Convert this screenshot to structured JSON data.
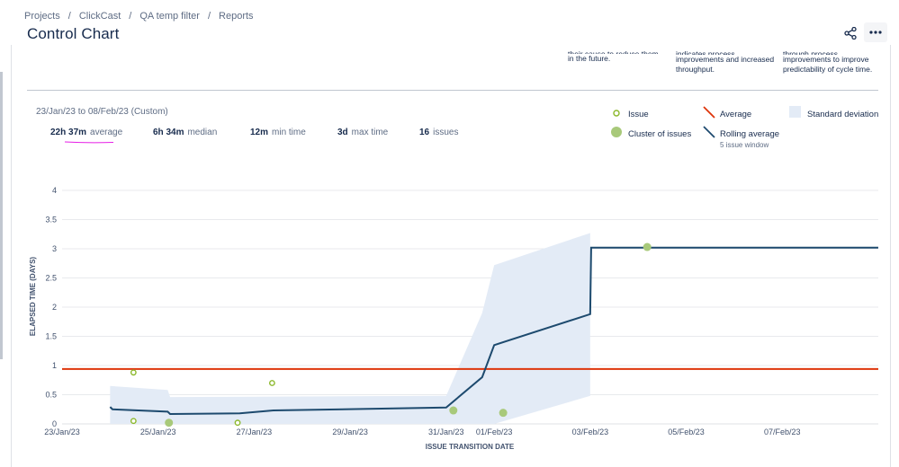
{
  "breadcrumb": [
    "Projects",
    "ClickCast",
    "QA temp filter",
    "Reports"
  ],
  "page": {
    "title": "Control Chart"
  },
  "hints": [
    {
      "lines": [
        "their cause to reduce them",
        "in the future."
      ]
    },
    {
      "lines": [
        "indicates process",
        "improvements and increased",
        "throughput."
      ]
    },
    {
      "lines": [
        "through process",
        "improvements to improve",
        "predictability of cycle time."
      ]
    }
  ],
  "date_range": "23/Jan/23 to 08/Feb/23 (Custom)",
  "stats": [
    {
      "value": "22h 37m",
      "label": "average"
    },
    {
      "value": "6h 34m",
      "label": "median"
    },
    {
      "value": "12m",
      "label": "min time"
    },
    {
      "value": "3d",
      "label": "max time"
    },
    {
      "value": "16",
      "label": "issues"
    }
  ],
  "legend": {
    "issue": "Issue",
    "cluster": "Cluster of issues",
    "average": "Average",
    "rolling": "Rolling average",
    "rolling_sub": "5 issue window",
    "stddev": "Standard deviation"
  },
  "colors": {
    "average": "#de350b",
    "rolling": "#1d4a6e",
    "issue": "#8bb82b",
    "cluster": "#a8c97a",
    "band": "#e3ebf6",
    "highlight": "#e61ee6"
  },
  "chart_data": {
    "type": "line",
    "xlabel": "ISSUE TRANSITION DATE",
    "ylabel": "ELAPSED TIME (DAYS)",
    "ylim": [
      0,
      4.3
    ],
    "x_ticks": [
      "23/Jan/23",
      "25/Jan/23",
      "27/Jan/23",
      "29/Jan/23",
      "31/Jan/23",
      "01/Feb/23",
      "03/Feb/23",
      "05/Feb/23",
      "07/Feb/23"
    ],
    "y_ticks": [
      "0",
      "0.5",
      "1",
      "1.5",
      "2",
      "2.5",
      "3",
      "3.5",
      "4"
    ],
    "average": 0.94,
    "issues": [
      {
        "date": "24/Jan/23",
        "value": 0.88
      },
      {
        "date": "24/Jan/23",
        "value": 0.05
      },
      {
        "date": "26/Jan/23",
        "value": 0.02
      },
      {
        "date": "27/Jan/23",
        "value": 0.7
      }
    ],
    "clusters": [
      {
        "date": "25/Jan/23",
        "value": 0.02
      },
      {
        "date": "31/Jan/23",
        "value": 0.23
      },
      {
        "date": "01/Feb/23",
        "value": 0.19
      },
      {
        "date": "04/Feb/23",
        "value": 3.03
      }
    ],
    "rolling_average": [
      [
        24.0,
        0.29
      ],
      [
        24.05,
        0.25
      ],
      [
        25.2,
        0.21
      ],
      [
        25.25,
        0.17
      ],
      [
        26.7,
        0.18
      ],
      [
        27.4,
        0.23
      ],
      [
        31.0,
        0.28
      ],
      [
        31.75,
        0.8
      ],
      [
        32.0,
        1.35
      ],
      [
        34.0,
        1.88
      ],
      [
        34.02,
        3.02
      ],
      [
        40.0,
        3.02
      ]
    ],
    "std_dev_upper": [
      [
        24.0,
        0.65
      ],
      [
        25.2,
        0.58
      ],
      [
        25.25,
        0.46
      ],
      [
        31.0,
        0.48
      ],
      [
        31.75,
        1.9
      ],
      [
        32.0,
        2.72
      ],
      [
        34.0,
        3.27
      ]
    ],
    "std_dev_lower": [
      [
        24.0,
        0.0
      ],
      [
        31.0,
        0.0
      ],
      [
        31.75,
        0.0
      ],
      [
        32.0,
        0.0
      ],
      [
        34.0,
        0.48
      ]
    ]
  }
}
